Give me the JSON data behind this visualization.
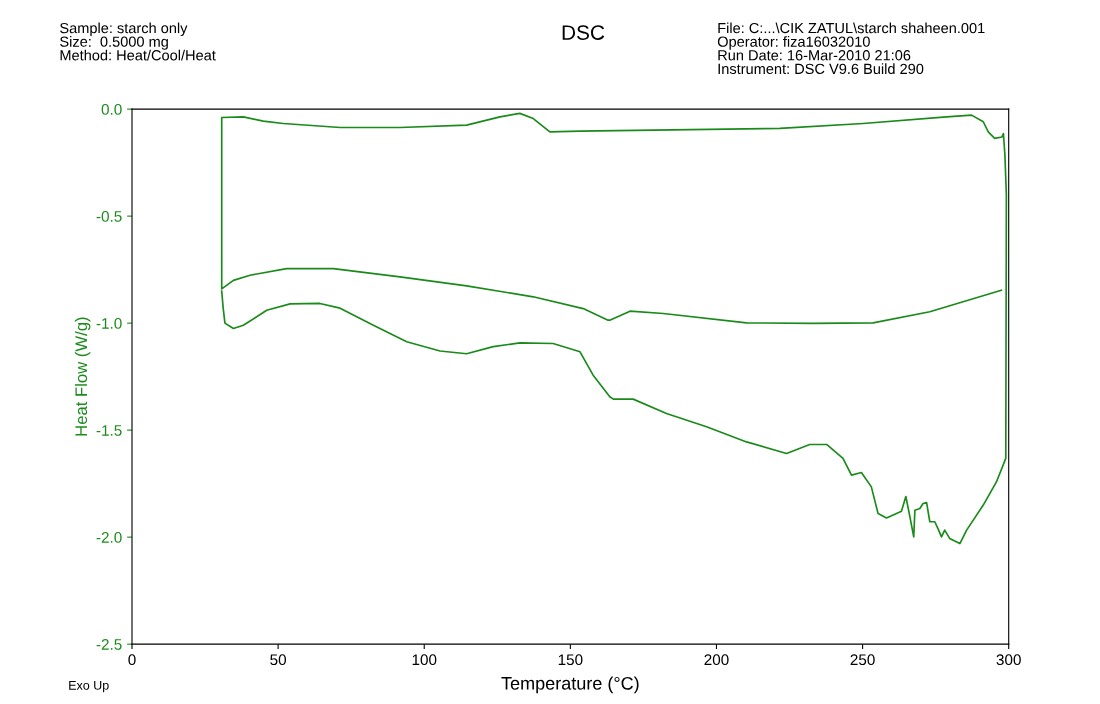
{
  "chart_data": {
    "type": "line",
    "title": "DSC",
    "xlabel": "Temperature (°C)",
    "ylabel": "Heat Flow (W/g)",
    "annotations": [
      "Sample: starch only\nSize:  0.5000 mg\nMethod: Heat/Cool/Heat",
      "File: C:...\\CIK ZATUL\\starch shaheen.001\nOperator: fiza16032010\nRun Date: 16-Mar-2010 21:06\nInstrument: DSC V9.6 Build 290",
      "Exo Up"
    ],
    "xlim": [
      0,
      300
    ],
    "ylim": [
      -2.5,
      0.0
    ],
    "xticks": [
      0,
      50,
      100,
      150,
      200,
      250,
      300
    ],
    "yticks": [
      {
        "value": -2.5,
        "label": "-2.5"
      },
      {
        "value": -2.0,
        "label": "-2.0"
      },
      {
        "value": -1.5,
        "label": "-1.5"
      },
      {
        "value": -1.0,
        "label": "-1.0"
      },
      {
        "value": -0.5,
        "label": "-0.5"
      },
      {
        "value": 0.0,
        "label": "0.0"
      }
    ],
    "grid": false,
    "legend": false,
    "line_style": "solid",
    "marker": "none",
    "series": [
      {
        "color": "#1a8a1a",
        "x": [
          30.7,
          31.2,
          31.8,
          34.7,
          38.1,
          46.1,
          54.1,
          64.3,
          71.2,
          82.6,
          94.0,
          105.4,
          114.5,
          123.6,
          132.7,
          144.1,
          153.3,
          157.8,
          163.5,
          164.7,
          171.5,
          182.9,
          196.6,
          210.3,
          224.0,
          231.9,
          237.7,
          243.3,
          246.2,
          249.6,
          253.0,
          255.3,
          258.2,
          263.3,
          264.8,
          266.2,
          267.5,
          267.9,
          269.6,
          270.7,
          271.9,
          273.0,
          274.7,
          275.8,
          277.0,
          278.1,
          279.8,
          283.3,
          285.6,
          291.3,
          295.8,
          299.0,
          299.2,
          298.7,
          298.2,
          297.7,
          295.2,
          293.0,
          291.3,
          287.3,
          278.7,
          250.2,
          221.7,
          153.3,
          143.0,
          137.3,
          132.7,
          125.9,
          114.5,
          91.7,
          71.2,
          51.8,
          44.9,
          38.1,
          30.7,
          30.7,
          34.7,
          40.4,
          52.9,
          68.9,
          91.7,
          114.5,
          137.3,
          154.4,
          162.9,
          163.5,
          170.4,
          181.8,
          210.3,
          233.1,
          253.6,
          273.0,
          297.5
        ],
        "values": [
          -0.85,
          -0.93,
          -1.0,
          -1.025,
          -1.01,
          -0.94,
          -0.91,
          -0.908,
          -0.93,
          -1.01,
          -1.087,
          -1.13,
          -1.143,
          -1.11,
          -1.092,
          -1.095,
          -1.134,
          -1.243,
          -1.344,
          -1.355,
          -1.355,
          -1.422,
          -1.484,
          -1.555,
          -1.609,
          -1.567,
          -1.567,
          -1.632,
          -1.71,
          -1.698,
          -1.765,
          -1.89,
          -1.91,
          -1.879,
          -1.81,
          -1.905,
          -1.999,
          -1.874,
          -1.866,
          -1.843,
          -1.838,
          -1.928,
          -1.928,
          -1.96,
          -1.999,
          -1.967,
          -2.006,
          -2.03,
          -1.967,
          -1.85,
          -1.742,
          -1.632,
          -0.4,
          -0.215,
          -0.114,
          -0.13,
          -0.137,
          -0.106,
          -0.059,
          -0.028,
          -0.036,
          -0.067,
          -0.09,
          -0.103,
          -0.106,
          -0.044,
          -0.02,
          -0.036,
          -0.075,
          -0.086,
          -0.086,
          -0.067,
          -0.056,
          -0.036,
          -0.039,
          -0.84,
          -0.8,
          -0.776,
          -0.745,
          -0.745,
          -0.784,
          -0.826,
          -0.877,
          -0.932,
          -0.986,
          -0.986,
          -0.944,
          -0.955,
          -0.999,
          -1.001,
          -0.999,
          -0.947,
          -0.846
        ]
      }
    ]
  }
}
